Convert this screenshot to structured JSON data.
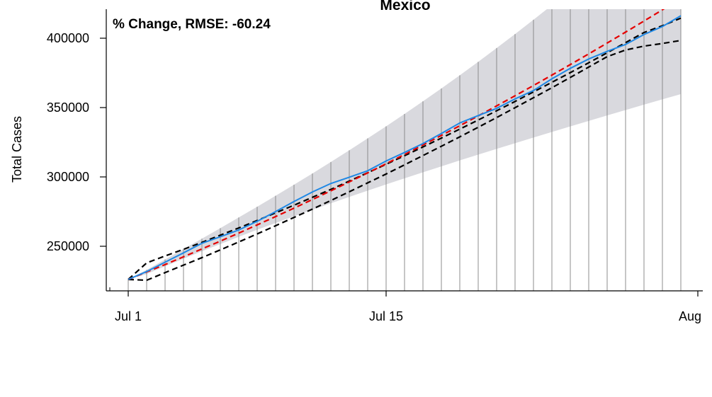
{
  "chart_data": {
    "type": "line",
    "title": "Mexico",
    "annotation": "% Change, RMSE: -60.24",
    "xlabel": "",
    "ylabel": "Total Cases",
    "x_ticks": [
      "Jul 1",
      "Jul 15",
      "Aug"
    ],
    "y_ticks": [
      "250000",
      "300000",
      "350000",
      "400000"
    ],
    "ylim": [
      217000,
      421000
    ],
    "xlim": [
      "2020-06-30",
      "2020-08-01"
    ],
    "grid": "vertical lines at each day",
    "dates": [
      "2020-07-01",
      "2020-07-02",
      "2020-07-03",
      "2020-07-04",
      "2020-07-05",
      "2020-07-06",
      "2020-07-07",
      "2020-07-08",
      "2020-07-09",
      "2020-07-10",
      "2020-07-11",
      "2020-07-12",
      "2020-07-13",
      "2020-07-14",
      "2020-07-15",
      "2020-07-16",
      "2020-07-17",
      "2020-07-18",
      "2020-07-19",
      "2020-07-20",
      "2020-07-21",
      "2020-07-22",
      "2020-07-23",
      "2020-07-24",
      "2020-07-25",
      "2020-07-26",
      "2020-07-27",
      "2020-07-28",
      "2020-07-29",
      "2020-07-30",
      "2020-07-31"
    ],
    "series": [
      {
        "color": "#1f88e5",
        "style": "solid",
        "values": [
          226089,
          231770,
          238511,
          245251,
          252165,
          256848,
          261750,
          268008,
          275003,
          282283,
          289174,
          295268,
          299750,
          304435,
          311486,
          317635,
          324041,
          331298,
          338913,
          344224,
          349396,
          356255,
          362274,
          370712,
          378285,
          385036,
          390516,
          395489,
          402697,
          408449,
          416179
        ]
      },
      {
        "color": "#e50000",
        "style": "dashed",
        "values": [
          226089,
          231500,
          236800,
          242400,
          248100,
          253700,
          259500,
          265400,
          271400,
          277500,
          283700,
          290000,
          296400,
          302900,
          309500,
          316200,
          323000,
          329900,
          336900,
          344000,
          351200,
          358500,
          365900,
          373400,
          381000,
          388700,
          396500,
          404400,
          412400,
          420500,
          428700
        ]
      },
      {
        "color": "#000000",
        "style": "dashed",
        "values": [
          226089,
          238000,
          243000,
          247800,
          252800,
          258000,
          263200,
          268600,
          274100,
          279600,
          285300,
          291000,
          297000,
          303000,
          309100,
          315300,
          321600,
          328000,
          334500,
          341000,
          347700,
          354400,
          361300,
          368200,
          375200,
          382300,
          389500,
          396800,
          404100,
          409000,
          414500
        ]
      },
      {
        "color": "#000000",
        "style": "dashed",
        "values": [
          226089,
          225500,
          231000,
          236400,
          241800,
          247400,
          253100,
          258900,
          264800,
          270800,
          276800,
          283000,
          289300,
          295700,
          302100,
          308700,
          315400,
          322100,
          328900,
          335800,
          342800,
          349900,
          357100,
          364300,
          371700,
          379200,
          386700,
          391500,
          394300,
          396200,
          398400
        ]
      }
    ],
    "band": {
      "color": "#d9d9de",
      "upper": [
        226089,
        233000,
        240500,
        248000,
        255500,
        263100,
        270800,
        278500,
        286400,
        294400,
        302500,
        310800,
        319200,
        327800,
        336500,
        345400,
        354500,
        363800,
        373300,
        383000,
        392900,
        403000,
        413300,
        423800,
        434500,
        445400,
        456500,
        467800,
        479300,
        491000,
        502900
      ],
      "lower": [
        226089,
        230000,
        235600,
        241000,
        246400,
        251600,
        256800,
        261900,
        266800,
        271600,
        276300,
        281000,
        285600,
        290100,
        294600,
        299000,
        303300,
        307600,
        311900,
        316100,
        320200,
        324300,
        328400,
        332400,
        336400,
        340400,
        344300,
        348200,
        352100,
        355900,
        359700
      ]
    }
  }
}
